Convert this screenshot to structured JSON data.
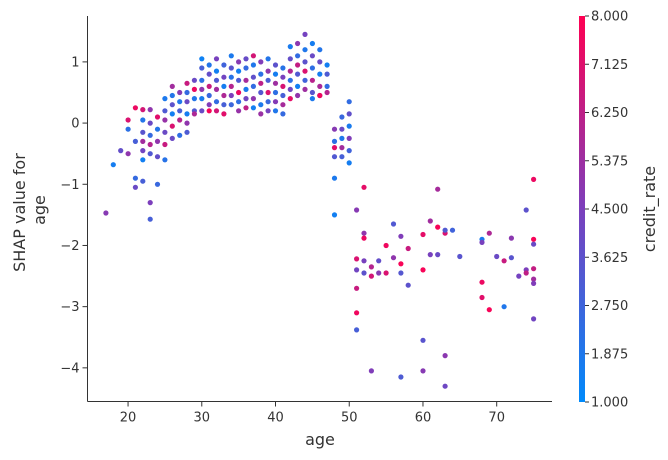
{
  "chart_data": {
    "type": "scatter",
    "xlabel": "age",
    "ylabel_lines": [
      "SHAP value for",
      "age"
    ],
    "xlim": [
      14.5,
      77.5
    ],
    "ylim": [
      -4.55,
      1.75
    ],
    "xticks": [
      20,
      30,
      40,
      50,
      60,
      70
    ],
    "yticks": [
      -4,
      -3,
      -2,
      -1,
      0,
      1
    ],
    "grid": false,
    "colorbar": {
      "label": "credit_rate",
      "min": 1.0,
      "max": 8.0,
      "tick_values": [
        1.0,
        1.875,
        2.75,
        3.625,
        4.5,
        5.375,
        6.25,
        7.125,
        8.0
      ],
      "tick_labels": [
        "1.000",
        "1.875",
        "2.750",
        "3.625",
        "4.500",
        "5.375",
        "6.250",
        "7.125",
        "8.000"
      ],
      "colormap": [
        "#008afb",
        "#7c3fbc",
        "#ff0052"
      ]
    },
    "points": [
      {
        "x": 17,
        "y": -1.47,
        "c": 4.8
      },
      {
        "x": 18,
        "y": -0.68,
        "c": 1.6
      },
      {
        "x": 19,
        "y": -0.45,
        "c": 3.8
      },
      {
        "x": 20,
        "y": 0.05,
        "c": 7.0
      },
      {
        "x": 20,
        "y": -0.1,
        "c": 2.2
      },
      {
        "x": 20,
        "y": -0.5,
        "c": 5.0
      },
      {
        "x": 21,
        "y": 0.25,
        "c": 7.5
      },
      {
        "x": 21,
        "y": -0.3,
        "c": 3.0
      },
      {
        "x": 21,
        "y": -0.9,
        "c": 2.5
      },
      {
        "x": 21,
        "y": -1.05,
        "c": 4.0
      },
      {
        "x": 22,
        "y": 0.22,
        "c": 6.8
      },
      {
        "x": 22,
        "y": 0.05,
        "c": 2.0
      },
      {
        "x": 22,
        "y": -0.15,
        "c": 3.5
      },
      {
        "x": 22,
        "y": -0.3,
        "c": 5.5
      },
      {
        "x": 22,
        "y": -0.45,
        "c": 4.2
      },
      {
        "x": 22,
        "y": -0.6,
        "c": 1.5
      },
      {
        "x": 22,
        "y": -0.95,
        "c": 3.0
      },
      {
        "x": 23,
        "y": 0.22,
        "c": 5.0
      },
      {
        "x": 23,
        "y": 0.0,
        "c": 4.0
      },
      {
        "x": 23,
        "y": -0.2,
        "c": 2.5
      },
      {
        "x": 23,
        "y": -0.35,
        "c": 6.0
      },
      {
        "x": 23,
        "y": -0.5,
        "c": 3.3
      },
      {
        "x": 23,
        "y": -1.3,
        "c": 4.5
      },
      {
        "x": 23,
        "y": -1.57,
        "c": 3.0
      },
      {
        "x": 24,
        "y": 0.1,
        "c": 7.2
      },
      {
        "x": 24,
        "y": -0.1,
        "c": 2.0
      },
      {
        "x": 24,
        "y": -0.3,
        "c": 5.0
      },
      {
        "x": 24,
        "y": -0.55,
        "c": 3.8
      },
      {
        "x": 24,
        "y": -1.0,
        "c": 2.6
      },
      {
        "x": 25,
        "y": 0.4,
        "c": 1.8
      },
      {
        "x": 25,
        "y": 0.2,
        "c": 3.2
      },
      {
        "x": 25,
        "y": 0.05,
        "c": 5.2
      },
      {
        "x": 25,
        "y": -0.15,
        "c": 4.0
      },
      {
        "x": 25,
        "y": -0.35,
        "c": 6.5
      },
      {
        "x": 25,
        "y": -0.6,
        "c": 2.1
      },
      {
        "x": 26,
        "y": 0.6,
        "c": 5.5
      },
      {
        "x": 26,
        "y": 0.45,
        "c": 2.0
      },
      {
        "x": 26,
        "y": 0.3,
        "c": 3.6
      },
      {
        "x": 26,
        "y": 0.15,
        "c": 1.5
      },
      {
        "x": 26,
        "y": -0.05,
        "c": 7.0
      },
      {
        "x": 26,
        "y": -0.25,
        "c": 4.0
      },
      {
        "x": 27,
        "y": 0.5,
        "c": 4.8
      },
      {
        "x": 27,
        "y": 0.35,
        "c": 1.9
      },
      {
        "x": 27,
        "y": 0.2,
        "c": 3.0
      },
      {
        "x": 27,
        "y": 0.05,
        "c": 6.0
      },
      {
        "x": 27,
        "y": -0.2,
        "c": 2.3
      },
      {
        "x": 28,
        "y": 0.65,
        "c": 6.5
      },
      {
        "x": 28,
        "y": 0.5,
        "c": 2.5
      },
      {
        "x": 28,
        "y": 0.35,
        "c": 4.0
      },
      {
        "x": 28,
        "y": 0.15,
        "c": 1.6
      },
      {
        "x": 28,
        "y": 0.0,
        "c": 5.0
      },
      {
        "x": 28,
        "y": -0.15,
        "c": 3.2
      },
      {
        "x": 29,
        "y": 0.7,
        "c": 4.0
      },
      {
        "x": 29,
        "y": 0.55,
        "c": 7.5
      },
      {
        "x": 29,
        "y": 0.4,
        "c": 2.0
      },
      {
        "x": 29,
        "y": 0.2,
        "c": 3.3
      },
      {
        "x": 29,
        "y": 0.15,
        "c": 5.8
      },
      {
        "x": 30,
        "y": 1.05,
        "c": 1.4
      },
      {
        "x": 30,
        "y": 0.9,
        "c": 3.0
      },
      {
        "x": 30,
        "y": 0.7,
        "c": 2.2
      },
      {
        "x": 30,
        "y": 0.55,
        "c": 5.0
      },
      {
        "x": 30,
        "y": 0.4,
        "c": 1.7
      },
      {
        "x": 30,
        "y": 0.2,
        "c": 4.0
      },
      {
        "x": 31,
        "y": 0.95,
        "c": 2.0
      },
      {
        "x": 31,
        "y": 0.8,
        "c": 3.8
      },
      {
        "x": 31,
        "y": 0.6,
        "c": 6.5
      },
      {
        "x": 31,
        "y": 0.45,
        "c": 2.6
      },
      {
        "x": 31,
        "y": 0.3,
        "c": 4.6
      },
      {
        "x": 31,
        "y": 0.2,
        "c": 7.8
      },
      {
        "x": 32,
        "y": 1.05,
        "c": 4.4
      },
      {
        "x": 32,
        "y": 0.85,
        "c": 1.5
      },
      {
        "x": 32,
        "y": 0.7,
        "c": 3.3
      },
      {
        "x": 32,
        "y": 0.55,
        "c": 5.5
      },
      {
        "x": 32,
        "y": 0.35,
        "c": 2.4
      },
      {
        "x": 32,
        "y": 0.2,
        "c": 6.8
      },
      {
        "x": 33,
        "y": 0.95,
        "c": 2.8
      },
      {
        "x": 33,
        "y": 0.75,
        "c": 4.2
      },
      {
        "x": 33,
        "y": 0.6,
        "c": 1.6
      },
      {
        "x": 33,
        "y": 0.45,
        "c": 5.8
      },
      {
        "x": 33,
        "y": 0.3,
        "c": 3.0
      },
      {
        "x": 33,
        "y": 0.15,
        "c": 7.2
      },
      {
        "x": 34,
        "y": 1.1,
        "c": 1.8
      },
      {
        "x": 34,
        "y": 0.9,
        "c": 3.5
      },
      {
        "x": 34,
        "y": 0.75,
        "c": 2.1
      },
      {
        "x": 34,
        "y": 0.6,
        "c": 6.0
      },
      {
        "x": 34,
        "y": 0.45,
        "c": 4.5
      },
      {
        "x": 34,
        "y": 0.3,
        "c": 2.7
      },
      {
        "x": 35,
        "y": 1.0,
        "c": 4.8
      },
      {
        "x": 35,
        "y": 0.85,
        "c": 1.5
      },
      {
        "x": 35,
        "y": 0.7,
        "c": 3.2
      },
      {
        "x": 35,
        "y": 0.5,
        "c": 7.5
      },
      {
        "x": 35,
        "y": 0.35,
        "c": 2.3
      },
      {
        "x": 35,
        "y": 0.2,
        "c": 5.2
      },
      {
        "x": 36,
        "y": 1.05,
        "c": 3.9
      },
      {
        "x": 36,
        "y": 0.9,
        "c": 2.5
      },
      {
        "x": 36,
        "y": 0.7,
        "c": 5.6
      },
      {
        "x": 36,
        "y": 0.55,
        "c": 1.7
      },
      {
        "x": 36,
        "y": 0.4,
        "c": 4.2
      },
      {
        "x": 36,
        "y": 0.25,
        "c": 6.3
      },
      {
        "x": 37,
        "y": 1.1,
        "c": 6.8
      },
      {
        "x": 37,
        "y": 0.95,
        "c": 1.9
      },
      {
        "x": 37,
        "y": 0.75,
        "c": 3.7
      },
      {
        "x": 37,
        "y": 0.6,
        "c": 2.4
      },
      {
        "x": 37,
        "y": 0.4,
        "c": 5.0
      },
      {
        "x": 37,
        "y": 0.25,
        "c": 1.5
      },
      {
        "x": 38,
        "y": 1.0,
        "c": 4.6
      },
      {
        "x": 38,
        "y": 0.8,
        "c": 2.2
      },
      {
        "x": 38,
        "y": 0.65,
        "c": 6.2
      },
      {
        "x": 38,
        "y": 0.5,
        "c": 3.4
      },
      {
        "x": 38,
        "y": 0.3,
        "c": 1.8
      },
      {
        "x": 38,
        "y": 0.15,
        "c": 5.3
      },
      {
        "x": 39,
        "y": 1.05,
        "c": 2.0
      },
      {
        "x": 39,
        "y": 0.85,
        "c": 5.0
      },
      {
        "x": 39,
        "y": 0.7,
        "c": 3.1
      },
      {
        "x": 39,
        "y": 0.5,
        "c": 7.0
      },
      {
        "x": 39,
        "y": 0.35,
        "c": 2.6
      },
      {
        "x": 39,
        "y": 0.2,
        "c": 4.3
      },
      {
        "x": 40,
        "y": 0.95,
        "c": 3.6
      },
      {
        "x": 40,
        "y": 0.8,
        "c": 1.6
      },
      {
        "x": 40,
        "y": 0.65,
        "c": 5.4
      },
      {
        "x": 40,
        "y": 0.5,
        "c": 2.3
      },
      {
        "x": 40,
        "y": 0.35,
        "c": 4.7
      },
      {
        "x": 40,
        "y": 0.2,
        "c": 1.9
      },
      {
        "x": 41,
        "y": 0.9,
        "c": 2.1
      },
      {
        "x": 41,
        "y": 0.75,
        "c": 4.4
      },
      {
        "x": 41,
        "y": 0.6,
        "c": 6.9
      },
      {
        "x": 41,
        "y": 0.45,
        "c": 3.0
      },
      {
        "x": 41,
        "y": 0.3,
        "c": 5.6
      },
      {
        "x": 41,
        "y": 0.15,
        "c": 2.5
      },
      {
        "x": 42,
        "y": 1.25,
        "c": 1.7
      },
      {
        "x": 42,
        "y": 1.05,
        "c": 3.8
      },
      {
        "x": 42,
        "y": 0.85,
        "c": 5.9
      },
      {
        "x": 42,
        "y": 0.7,
        "c": 2.2
      },
      {
        "x": 42,
        "y": 0.55,
        "c": 4.1
      },
      {
        "x": 42,
        "y": 0.4,
        "c": 7.3
      },
      {
        "x": 43,
        "y": 1.3,
        "c": 4.9
      },
      {
        "x": 43,
        "y": 1.1,
        "c": 2.4
      },
      {
        "x": 43,
        "y": 0.95,
        "c": 6.4
      },
      {
        "x": 43,
        "y": 0.8,
        "c": 3.3
      },
      {
        "x": 43,
        "y": 0.6,
        "c": 1.5
      },
      {
        "x": 43,
        "y": 0.45,
        "c": 5.1
      },
      {
        "x": 44,
        "y": 1.45,
        "c": 4.3
      },
      {
        "x": 44,
        "y": 1.2,
        "c": 1.9
      },
      {
        "x": 44,
        "y": 1.0,
        "c": 3.6
      },
      {
        "x": 44,
        "y": 0.85,
        "c": 7.0
      },
      {
        "x": 44,
        "y": 0.7,
        "c": 2.8
      },
      {
        "x": 44,
        "y": 0.55,
        "c": 5.4
      },
      {
        "x": 45,
        "y": 1.3,
        "c": 1.6
      },
      {
        "x": 45,
        "y": 1.1,
        "c": 4.0
      },
      {
        "x": 45,
        "y": 0.9,
        "c": 2.3
      },
      {
        "x": 45,
        "y": 0.7,
        "c": 6.1
      },
      {
        "x": 45,
        "y": 0.5,
        "c": 3.5
      },
      {
        "x": 45,
        "y": 0.4,
        "c": 1.8
      },
      {
        "x": 46,
        "y": 1.2,
        "c": 2.0
      },
      {
        "x": 46,
        "y": 1.0,
        "c": 3.9
      },
      {
        "x": 46,
        "y": 0.8,
        "c": 1.6
      },
      {
        "x": 46,
        "y": 0.6,
        "c": 5.7
      },
      {
        "x": 46,
        "y": 0.45,
        "c": 4.4
      },
      {
        "x": 46,
        "y": 0.45,
        "c": 7.6
      },
      {
        "x": 47,
        "y": 0.95,
        "c": 1.5
      },
      {
        "x": 47,
        "y": 0.8,
        "c": 3.2
      },
      {
        "x": 47,
        "y": 0.6,
        "c": 2.4
      },
      {
        "x": 47,
        "y": 0.5,
        "c": 6.0
      },
      {
        "x": 48,
        "y": -0.1,
        "c": 4.8
      },
      {
        "x": 48,
        "y": -0.3,
        "c": 2.2
      },
      {
        "x": 48,
        "y": -0.4,
        "c": 7.2
      },
      {
        "x": 48,
        "y": -0.55,
        "c": 3.3
      },
      {
        "x": 48,
        "y": -0.9,
        "c": 1.8
      },
      {
        "x": 48,
        "y": -1.5,
        "c": 1.5
      },
      {
        "x": 49,
        "y": 0.1,
        "c": 2.6
      },
      {
        "x": 49,
        "y": -0.1,
        "c": 4.0
      },
      {
        "x": 49,
        "y": -0.25,
        "c": 1.9
      },
      {
        "x": 49,
        "y": -0.4,
        "c": 5.5
      },
      {
        "x": 49,
        "y": -0.55,
        "c": 3.0
      },
      {
        "x": 50,
        "y": 0.35,
        "c": 2.4
      },
      {
        "x": 50,
        "y": 0.15,
        "c": 3.7
      },
      {
        "x": 50,
        "y": -0.05,
        "c": 1.7
      },
      {
        "x": 50,
        "y": -0.25,
        "c": 4.6
      },
      {
        "x": 50,
        "y": -0.45,
        "c": 2.8
      },
      {
        "x": 50,
        "y": -0.65,
        "c": 1.6
      },
      {
        "x": 51,
        "y": -1.42,
        "c": 4.8
      },
      {
        "x": 51,
        "y": -2.22,
        "c": 7.0
      },
      {
        "x": 51,
        "y": -2.4,
        "c": 4.2
      },
      {
        "x": 51,
        "y": -2.7,
        "c": 6.5
      },
      {
        "x": 51,
        "y": -3.1,
        "c": 7.6
      },
      {
        "x": 51,
        "y": -3.38,
        "c": 3.0
      },
      {
        "x": 52,
        "y": -1.05,
        "c": 7.3
      },
      {
        "x": 52,
        "y": -1.8,
        "c": 5.0
      },
      {
        "x": 52,
        "y": -1.88,
        "c": 7.5
      },
      {
        "x": 52,
        "y": -2.45,
        "c": 3.6
      },
      {
        "x": 52,
        "y": -2.25,
        "c": 4.4
      },
      {
        "x": 53,
        "y": -2.35,
        "c": 6.0
      },
      {
        "x": 53,
        "y": -2.5,
        "c": 6.8
      },
      {
        "x": 53,
        "y": -4.05,
        "c": 4.6
      },
      {
        "x": 54,
        "y": -2.25,
        "c": 3.8
      },
      {
        "x": 54,
        "y": -2.45,
        "c": 4.8
      },
      {
        "x": 55,
        "y": -2.0,
        "c": 7.6
      },
      {
        "x": 55,
        "y": -2.45,
        "c": 7.0
      },
      {
        "x": 56,
        "y": -1.65,
        "c": 3.3
      },
      {
        "x": 56,
        "y": -2.2,
        "c": 5.0
      },
      {
        "x": 57,
        "y": -1.85,
        "c": 4.6
      },
      {
        "x": 57,
        "y": -2.3,
        "c": 7.8
      },
      {
        "x": 57,
        "y": -2.45,
        "c": 3.4
      },
      {
        "x": 57,
        "y": -4.15,
        "c": 3.2
      },
      {
        "x": 58,
        "y": -2.05,
        "c": 6.5
      },
      {
        "x": 58,
        "y": -2.65,
        "c": 3.6
      },
      {
        "x": 60,
        "y": -1.82,
        "c": 7.3
      },
      {
        "x": 60,
        "y": -2.4,
        "c": 7.8
      },
      {
        "x": 60,
        "y": -3.55,
        "c": 3.5
      },
      {
        "x": 60,
        "y": -4.05,
        "c": 4.8
      },
      {
        "x": 61,
        "y": -1.6,
        "c": 5.5
      },
      {
        "x": 61,
        "y": -2.15,
        "c": 4.4
      },
      {
        "x": 62,
        "y": -1.08,
        "c": 5.6
      },
      {
        "x": 62,
        "y": -1.7,
        "c": 7.8
      },
      {
        "x": 62,
        "y": -2.15,
        "c": 4.0
      },
      {
        "x": 63,
        "y": -1.8,
        "c": 7.0
      },
      {
        "x": 63,
        "y": -1.75,
        "c": 3.3
      },
      {
        "x": 63,
        "y": -3.8,
        "c": 4.9
      },
      {
        "x": 63,
        "y": -4.3,
        "c": 4.1
      },
      {
        "x": 64,
        "y": -1.75,
        "c": 2.8
      },
      {
        "x": 65,
        "y": -2.18,
        "c": 3.5
      },
      {
        "x": 68,
        "y": -1.9,
        "c": 1.7
      },
      {
        "x": 68,
        "y": -1.95,
        "c": 4.4
      },
      {
        "x": 68,
        "y": -2.6,
        "c": 7.5
      },
      {
        "x": 68,
        "y": -2.85,
        "c": 7.2
      },
      {
        "x": 69,
        "y": -1.8,
        "c": 5.8
      },
      {
        "x": 69,
        "y": -3.05,
        "c": 7.8
      },
      {
        "x": 70,
        "y": -2.18,
        "c": 4.0
      },
      {
        "x": 71,
        "y": -2.25,
        "c": 6.5
      },
      {
        "x": 71,
        "y": -3.0,
        "c": 1.9
      },
      {
        "x": 72,
        "y": -1.88,
        "c": 4.9
      },
      {
        "x": 72,
        "y": -2.2,
        "c": 3.5
      },
      {
        "x": 73,
        "y": -2.5,
        "c": 4.3
      },
      {
        "x": 74,
        "y": -1.42,
        "c": 3.6
      },
      {
        "x": 74,
        "y": -2.4,
        "c": 4.5
      },
      {
        "x": 74,
        "y": -2.45,
        "c": 6.3
      },
      {
        "x": 75,
        "y": -0.92,
        "c": 7.5
      },
      {
        "x": 75,
        "y": -1.9,
        "c": 7.8
      },
      {
        "x": 75,
        "y": -2.38,
        "c": 6.4
      },
      {
        "x": 75,
        "y": -1.98,
        "c": 4.0
      },
      {
        "x": 75,
        "y": -2.55,
        "c": 5.5
      },
      {
        "x": 75,
        "y": -2.62,
        "c": 4.6
      },
      {
        "x": 75,
        "y": -3.2,
        "c": 4.2
      }
    ]
  }
}
